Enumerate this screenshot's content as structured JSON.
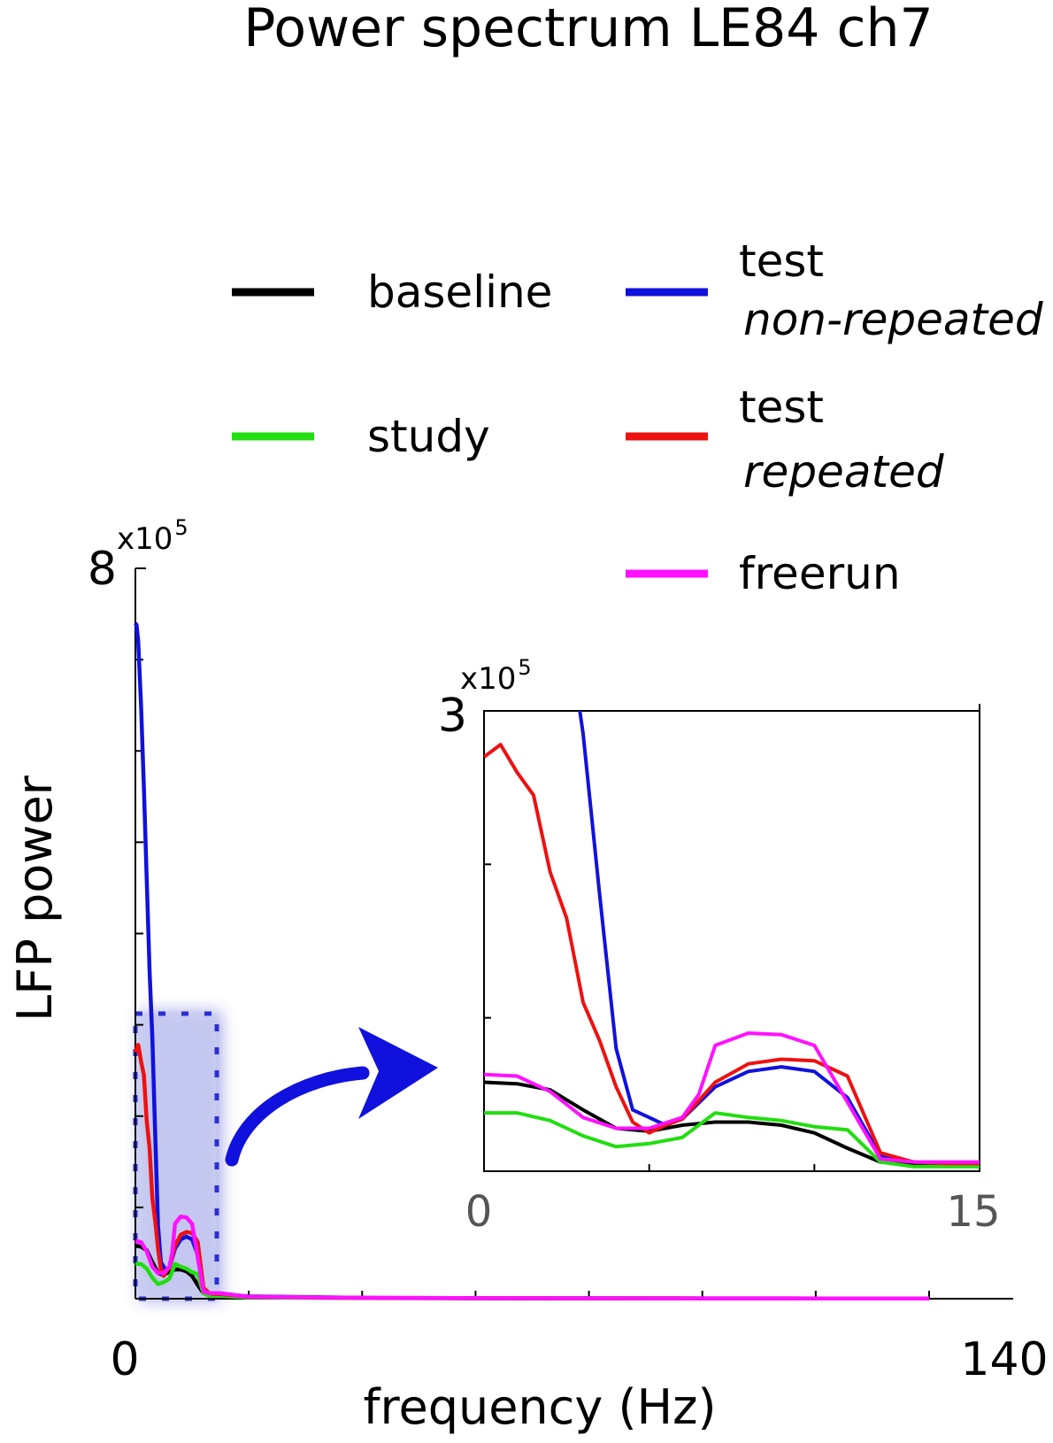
{
  "chart_data": {
    "type": "line",
    "title": "Power spectrum LE84 ch7",
    "legend_placement": "top",
    "legend": [
      {
        "label": "baseline",
        "sublabel": "",
        "color": "#000000"
      },
      {
        "label": "study",
        "sublabel": "",
        "color": "#22dd11"
      },
      {
        "label": "test",
        "sublabel": "non-repeated",
        "color": "#1111dd"
      },
      {
        "label": "test",
        "sublabel": "repeated",
        "color": "#ee1111"
      },
      {
        "label": "freerun",
        "sublabel": "",
        "color": "#ff11ff"
      }
    ],
    "main": {
      "xlabel": "frequency (Hz)",
      "ylabel": "LFP power",
      "xlim": [
        0,
        140
      ],
      "ylim": [
        0,
        800000
      ],
      "x_ticks": [
        "0",
        "140"
      ],
      "y_tick_top": "8",
      "y_exponent": "x10",
      "y_exponent_power": "5",
      "grid": false,
      "highlight_box": {
        "x": [
          0,
          15
        ],
        "y": [
          0,
          300000
        ]
      }
    },
    "inset": {
      "xlim": [
        0,
        15
      ],
      "ylim": [
        0,
        300000
      ],
      "x_ticks": [
        "0",
        "15"
      ],
      "y_tick_top": "3",
      "y_exponent": "x10",
      "y_exponent_power": "5",
      "grid": false
    },
    "series": [
      {
        "name": "baseline",
        "color": "#000000",
        "x": [
          0,
          1,
          2,
          3,
          4,
          5,
          6,
          7,
          8,
          9,
          10,
          11,
          12,
          13,
          14,
          15,
          20,
          40,
          60,
          80,
          100,
          120,
          140
        ],
        "y": [
          58000,
          57000,
          53000,
          40000,
          28000,
          26000,
          30000,
          32000,
          32000,
          30000,
          25000,
          15000,
          6000,
          4000,
          4000,
          4000,
          1500,
          800,
          500,
          400,
          300,
          300,
          300
        ]
      },
      {
        "name": "study",
        "color": "#22dd11",
        "x": [
          0,
          1,
          2,
          3,
          4,
          5,
          6,
          7,
          8,
          9,
          10,
          11,
          12,
          13,
          14,
          15,
          20,
          40,
          60,
          80,
          100,
          120,
          140
        ],
        "y": [
          38000,
          38000,
          33000,
          23000,
          16000,
          18000,
          22000,
          38000,
          35000,
          33000,
          29000,
          27000,
          6000,
          3000,
          3000,
          3000,
          1500,
          800,
          500,
          400,
          300,
          300,
          300
        ]
      },
      {
        "name": "test non-repeated",
        "color": "#1111dd",
        "x": [
          0,
          0.2,
          0.5,
          1,
          1.5,
          2,
          2.5,
          3,
          3.5,
          4,
          4.5,
          5,
          5.5,
          6,
          7,
          8,
          9,
          10,
          11,
          12,
          13,
          14,
          15,
          20,
          40,
          60,
          80,
          100,
          120,
          140
        ],
        "y": [
          740000,
          738000,
          720000,
          650000,
          560000,
          460000,
          360000,
          285000,
          180000,
          80000,
          40000,
          35000,
          30000,
          34000,
          55000,
          65000,
          68000,
          65000,
          48000,
          10000,
          6000,
          5000,
          5000,
          2500,
          1000,
          600,
          500,
          400,
          300,
          300
        ]
      },
      {
        "name": "test repeated",
        "color": "#ee1111",
        "x": [
          0,
          0.5,
          1,
          1.5,
          2,
          2.5,
          3,
          3.5,
          4,
          4.5,
          5,
          5.5,
          6,
          6.5,
          7,
          8,
          9,
          10,
          11,
          12,
          13,
          14,
          15,
          20,
          40,
          60,
          80,
          100,
          120,
          140
        ],
        "y": [
          270000,
          278000,
          260000,
          245000,
          195000,
          165000,
          110000,
          85000,
          55000,
          32000,
          25000,
          30000,
          34000,
          46000,
          58000,
          70000,
          73000,
          72000,
          62000,
          12000,
          6000,
          5000,
          5000,
          2000,
          900,
          500,
          400,
          300,
          300,
          300
        ]
      },
      {
        "name": "freerun",
        "color": "#ff11ff",
        "x": [
          0,
          1,
          2,
          3,
          4,
          5,
          6,
          6.5,
          7,
          8,
          9,
          10,
          11,
          12,
          13,
          14,
          15,
          20,
          40,
          60,
          80,
          100,
          120,
          140
        ],
        "y": [
          63000,
          62000,
          52000,
          35000,
          28000,
          28000,
          35000,
          50000,
          82000,
          90000,
          89000,
          82000,
          45000,
          8000,
          6000,
          6000,
          6000,
          2000,
          1000,
          600,
          500,
          400,
          300,
          300
        ]
      }
    ]
  }
}
